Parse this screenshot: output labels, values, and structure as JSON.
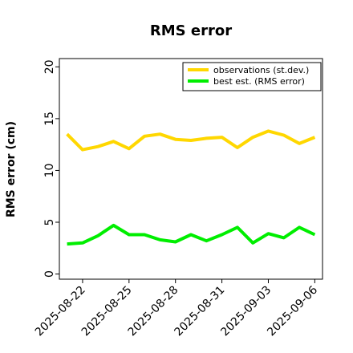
{
  "chart_data": {
    "type": "line",
    "title": "RMS error",
    "xlabel": "",
    "ylabel": "RMS error (cm)",
    "ylim": [
      -0.5,
      20.8
    ],
    "xlim": [
      "2025-08-20T12:00",
      "2025-09-06T12:00"
    ],
    "yticks": [
      0,
      5,
      10,
      15,
      20
    ],
    "xticks": [
      "2025-08-22",
      "2025-08-25",
      "2025-08-28",
      "2025-08-31",
      "2025-09-03",
      "2025-09-06"
    ],
    "highlight_tick": "2025-08-28",
    "highlight_color": "#228b22",
    "grid": false,
    "legend_position": "top-right",
    "x": [
      "2025-08-21",
      "2025-08-22",
      "2025-08-23",
      "2025-08-24",
      "2025-08-25",
      "2025-08-26",
      "2025-08-27",
      "2025-08-28",
      "2025-08-29",
      "2025-08-30",
      "2025-08-31",
      "2025-09-01",
      "2025-09-02",
      "2025-09-03",
      "2025-09-04",
      "2025-09-05",
      "2025-09-06"
    ],
    "series": [
      {
        "name": "observations (st.dev.)",
        "color": "#ffd700",
        "values": [
          13.5,
          12.0,
          12.3,
          12.8,
          12.1,
          13.3,
          13.5,
          13.0,
          12.9,
          13.1,
          13.2,
          12.2,
          13.2,
          13.8,
          13.4,
          12.6,
          13.2
        ]
      },
      {
        "name": "best est. (RMS error)",
        "color": "#00ee00",
        "values": [
          2.9,
          3.0,
          3.7,
          4.7,
          3.8,
          3.8,
          3.3,
          3.1,
          3.8,
          3.2,
          3.8,
          4.5,
          3.0,
          3.9,
          3.5,
          4.5,
          3.8
        ]
      }
    ]
  }
}
